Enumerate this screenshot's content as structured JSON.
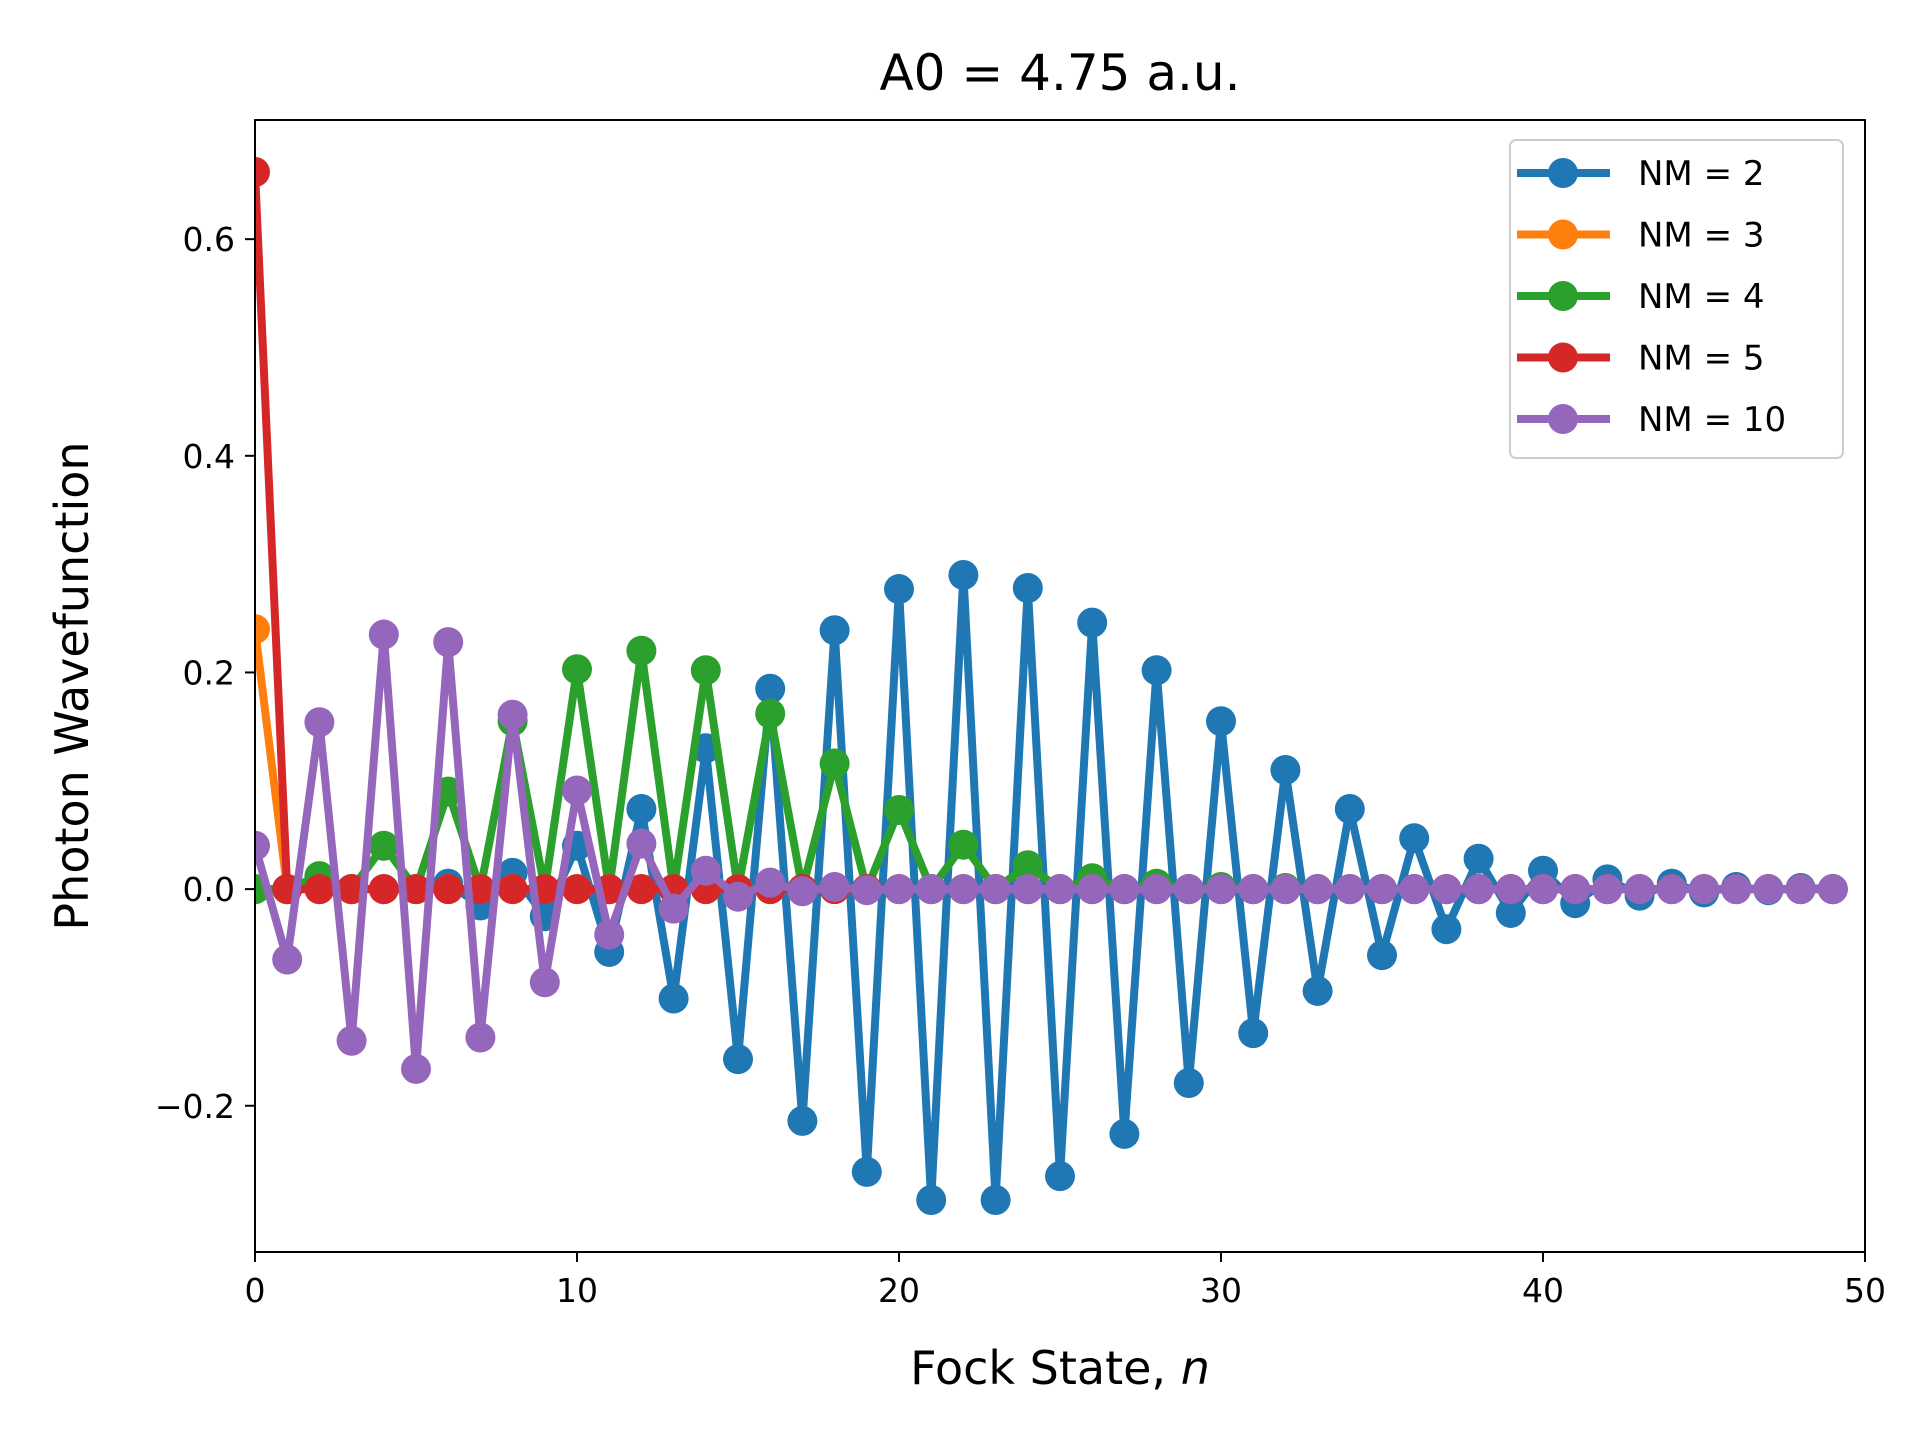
{
  "chart_data": {
    "type": "line",
    "title": "A0 = 4.75 a.u.",
    "xlabel_prefix": "Fock State, ",
    "xlabel_var": "n",
    "ylabel": "Photon Wavefunction",
    "xlim": [
      0,
      50
    ],
    "ylim": [
      -0.335,
      0.71
    ],
    "xticks": [
      0,
      10,
      20,
      30,
      40,
      50
    ],
    "xtick_labels": [
      "0",
      "10",
      "20",
      "30",
      "40",
      "50"
    ],
    "yticks": [
      -0.2,
      0.0,
      0.2,
      0.4,
      0.6
    ],
    "ytick_labels": [
      "−0.2",
      "0.0",
      "0.2",
      "0.4",
      "0.6"
    ],
    "grid": false,
    "legend_position": "top-right",
    "series": [
      {
        "name": "NM = 2",
        "color": "#1f77b4",
        "x": [
          0,
          1,
          2,
          3,
          4,
          5,
          6,
          7,
          8,
          9,
          10,
          11,
          12,
          13,
          14,
          15,
          16,
          17,
          18,
          19,
          20,
          21,
          22,
          23,
          24,
          25,
          26,
          27,
          28,
          29,
          30,
          31,
          32,
          33,
          34,
          35,
          36,
          37,
          38,
          39,
          40,
          41,
          42,
          43,
          44,
          45,
          46,
          47,
          48,
          49
        ],
        "y": [
          0.0,
          0.0,
          0.0,
          0.0,
          0.0,
          0.0,
          0.005,
          -0.015,
          0.015,
          -0.025,
          0.04,
          -0.058,
          0.074,
          -0.101,
          0.13,
          -0.157,
          0.185,
          -0.214,
          0.239,
          -0.261,
          0.277,
          -0.287,
          0.29,
          -0.287,
          0.278,
          -0.265,
          0.246,
          -0.226,
          0.202,
          -0.179,
          0.155,
          -0.133,
          0.11,
          -0.094,
          0.074,
          -0.061,
          0.047,
          -0.037,
          0.028,
          -0.022,
          0.017,
          -0.013,
          0.009,
          -0.006,
          0.005,
          -0.003,
          0.002,
          -0.001,
          0.001,
          0.0
        ]
      },
      {
        "name": "NM = 3",
        "color": "#ff7f0e",
        "x": [
          0,
          1,
          2,
          3,
          4,
          5,
          6,
          7,
          8,
          9,
          10,
          11,
          12,
          13,
          14,
          15,
          16,
          17,
          18,
          19,
          20,
          21,
          22,
          23,
          24,
          25,
          26,
          27,
          28,
          29,
          30,
          31,
          32,
          33,
          34,
          35,
          36,
          37,
          38,
          39,
          40,
          41,
          42,
          43,
          44,
          45,
          46,
          47,
          48,
          49
        ],
        "y": [
          0.24,
          0.0,
          0.0,
          0.0,
          0.0,
          0.0,
          0.0,
          0.0,
          0.0,
          0.0,
          0.0,
          0.0,
          0.0,
          0.0,
          0.0,
          0.0,
          0.0,
          0.0,
          0.0,
          0.0,
          0.0,
          0.0,
          0.0,
          0.0,
          0.0,
          0.0,
          0.0,
          0.0,
          0.0,
          0.0,
          0.0,
          0.0,
          0.0,
          0.0,
          0.0,
          0.0,
          0.0,
          0.0,
          0.0,
          0.0,
          0.0,
          0.0,
          0.0,
          0.0,
          0.0,
          0.0,
          0.0,
          0.0,
          0.0,
          0.0
        ]
      },
      {
        "name": "NM = 4",
        "color": "#2ca02c",
        "x": [
          0,
          1,
          2,
          3,
          4,
          5,
          6,
          7,
          8,
          9,
          10,
          11,
          12,
          13,
          14,
          15,
          16,
          17,
          18,
          19,
          20,
          21,
          22,
          23,
          24,
          25,
          26,
          27,
          28,
          29,
          30,
          31,
          32,
          33,
          34,
          35,
          36,
          37,
          38,
          39,
          40,
          41,
          42,
          43,
          44,
          45,
          46,
          47,
          48,
          49
        ],
        "y": [
          0.0,
          0.0,
          0.012,
          0.0,
          0.04,
          0.0,
          0.09,
          0.0,
          0.155,
          0.0,
          0.203,
          0.0,
          0.22,
          0.0,
          0.202,
          0.0,
          0.162,
          0.0,
          0.116,
          0.0,
          0.073,
          0.0,
          0.041,
          0.0,
          0.022,
          0.0,
          0.01,
          0.0,
          0.005,
          0.0,
          0.002,
          0.0,
          0.001,
          0.0,
          0.0,
          0.0,
          0.0,
          0.0,
          0.0,
          0.0,
          0.0,
          0.0,
          0.0,
          0.0,
          0.0,
          0.0,
          0.0,
          0.0,
          0.0,
          0.0
        ]
      },
      {
        "name": "NM = 5",
        "color": "#d62728",
        "x": [
          0,
          1,
          2,
          3,
          4,
          5,
          6,
          7,
          8,
          9,
          10,
          11,
          12,
          13,
          14,
          15,
          16,
          17,
          18,
          19,
          20,
          21,
          22,
          23,
          24,
          25,
          26,
          27,
          28,
          29,
          30,
          31,
          32,
          33,
          34,
          35,
          36,
          37,
          38,
          39,
          40,
          41,
          42,
          43,
          44,
          45,
          46,
          47,
          48,
          49
        ],
        "y": [
          0.662,
          0.0,
          0.0,
          0.0,
          0.0,
          0.0,
          0.0,
          0.0,
          0.0,
          0.0,
          0.0,
          0.0,
          0.0,
          0.0,
          0.0,
          0.0,
          0.0,
          0.0,
          0.0,
          0.0,
          0.0,
          0.0,
          0.0,
          0.0,
          0.0,
          0.0,
          0.0,
          0.0,
          0.0,
          0.0,
          0.0,
          0.0,
          0.0,
          0.0,
          0.0,
          0.0,
          0.0,
          0.0,
          0.0,
          0.0,
          0.0,
          0.0,
          0.0,
          0.0,
          0.0,
          0.0,
          0.0,
          0.0,
          0.0,
          0.0
        ]
      },
      {
        "name": "NM = 10",
        "color": "#9467bd",
        "x": [
          0,
          1,
          2,
          3,
          4,
          5,
          6,
          7,
          8,
          9,
          10,
          11,
          12,
          13,
          14,
          15,
          16,
          17,
          18,
          19,
          20,
          21,
          22,
          23,
          24,
          25,
          26,
          27,
          28,
          29,
          30,
          31,
          32,
          33,
          34,
          35,
          36,
          37,
          38,
          39,
          40,
          41,
          42,
          43,
          44,
          45,
          46,
          47,
          48,
          49
        ],
        "y": [
          0.04,
          -0.065,
          0.154,
          -0.14,
          0.235,
          -0.166,
          0.228,
          -0.137,
          0.161,
          -0.086,
          0.091,
          -0.042,
          0.042,
          -0.018,
          0.017,
          -0.007,
          0.006,
          -0.002,
          0.002,
          -0.001,
          0.0,
          0.0,
          0.0,
          0.0,
          0.0,
          0.0,
          0.0,
          0.0,
          0.0,
          0.0,
          0.0,
          0.0,
          0.0,
          0.0,
          0.0,
          0.0,
          0.0,
          0.0,
          0.0,
          0.0,
          0.0,
          0.0,
          0.0,
          0.0,
          0.0,
          0.0,
          0.0,
          0.0,
          0.0,
          0.0
        ]
      }
    ]
  }
}
